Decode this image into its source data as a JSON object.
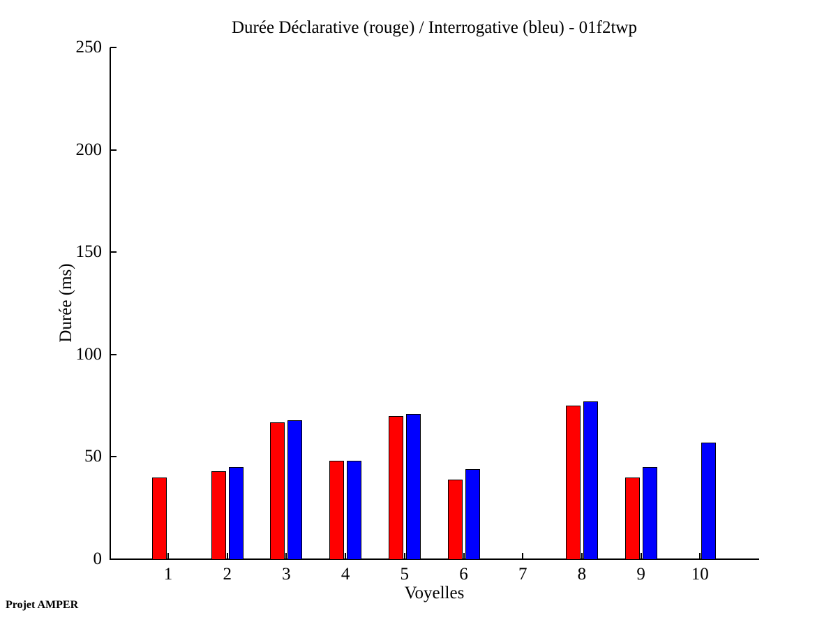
{
  "chart_data": {
    "type": "bar",
    "title": "Durée Déclarative (rouge) / Interrogative (bleu) - 01f2twp",
    "xlabel": "Voyelles",
    "ylabel": "Durée (ms)",
    "categories": [
      "1",
      "2",
      "3",
      "4",
      "5",
      "6",
      "7",
      "8",
      "9",
      "10"
    ],
    "series": [
      {
        "name": "Déclarative (rouge)",
        "color": "#ff0000",
        "values": [
          40,
          43,
          67,
          48,
          70,
          39,
          0,
          75,
          40,
          0
        ]
      },
      {
        "name": "Interrogative (bleu)",
        "color": "#0000ff",
        "values": [
          0,
          45,
          68,
          48,
          71,
          44,
          0,
          77,
          45,
          57
        ]
      }
    ],
    "ylim": [
      0,
      250
    ],
    "yticks": [
      0,
      50,
      100,
      150,
      200,
      250
    ],
    "grid": false,
    "legend_position": "none"
  },
  "footer": {
    "credit": "Projet AMPER"
  }
}
